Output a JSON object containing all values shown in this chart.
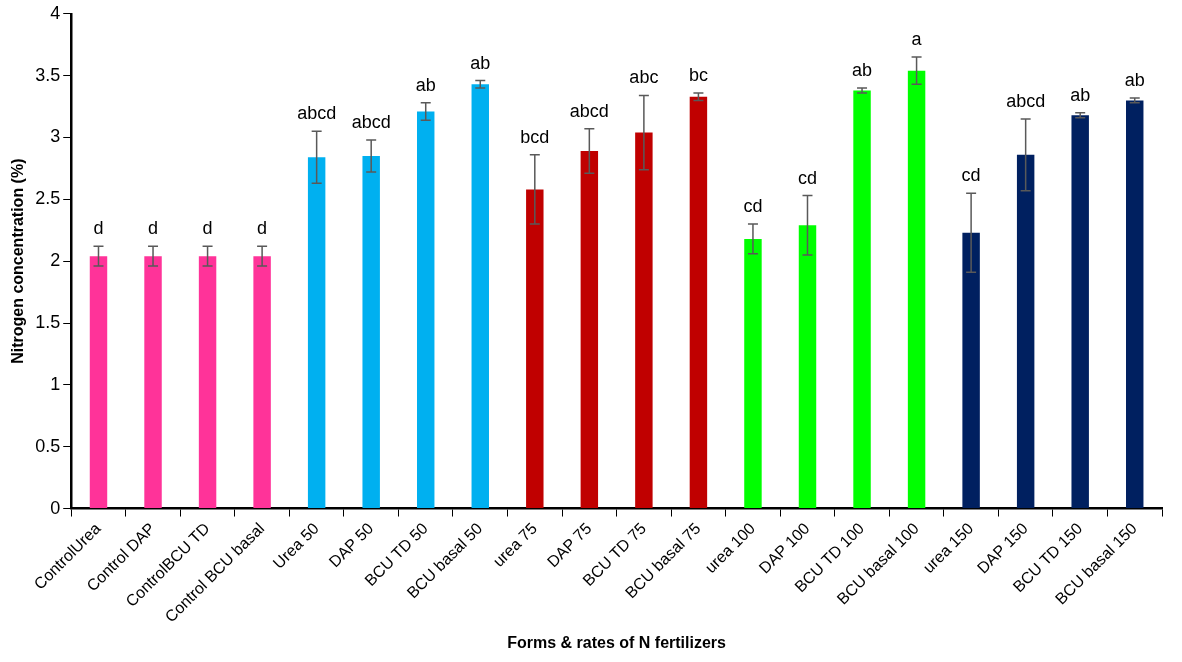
{
  "chart_data": {
    "type": "bar",
    "xlabel": "Forms & rates of N fertilizers",
    "ylabel": "Nitrogen concentration (%)",
    "categories": [
      "ControlUrea",
      "Control DAP",
      "ControlBCU TD",
      "Control BCU basal",
      "Urea 50",
      "DAP 50",
      "BCU TD 50",
      "BCU basal 50",
      "urea 75",
      "DAP 75",
      "BCU TD 75",
      "BCU basal 75",
      "urea 100",
      "DAP 100",
      "BCU TD 100",
      "BCU basal 100",
      "urea 150",
      "DAP 150",
      "BCU TD 150",
      "BCU basal 150"
    ],
    "values": [
      2.04,
      2.04,
      2.04,
      2.04,
      2.84,
      2.85,
      3.21,
      3.43,
      2.58,
      2.89,
      3.04,
      3.33,
      2.18,
      2.29,
      3.38,
      3.54,
      2.23,
      2.86,
      3.18,
      3.3
    ],
    "errors": [
      0.08,
      0.08,
      0.08,
      0.08,
      0.21,
      0.13,
      0.07,
      0.03,
      0.28,
      0.18,
      0.3,
      0.03,
      0.12,
      0.24,
      0.02,
      0.11,
      0.32,
      0.29,
      0.02,
      0.02
    ],
    "colors": [
      "#ff3399",
      "#ff3399",
      "#ff3399",
      "#ff3399",
      "#00b0f0",
      "#00b0f0",
      "#00b0f0",
      "#00b0f0",
      "#c00000",
      "#c00000",
      "#c00000",
      "#c00000",
      "#00ff00",
      "#00ff00",
      "#00ff00",
      "#00ff00",
      "#002060",
      "#002060",
      "#002060",
      "#002060"
    ],
    "ylim": [
      0,
      4
    ],
    "yticks": [
      0,
      0.5,
      1,
      1.5,
      2,
      2.5,
      3,
      3.5,
      4
    ],
    "grid": false,
    "legend": false,
    "annotations": [
      {
        "text": "d",
        "x": "ControlUrea",
        "y": 2.12
      },
      {
        "text": "d",
        "x": "Control DAP",
        "y": 2.12
      },
      {
        "text": "d",
        "x": "ControlBCU TD",
        "y": 2.12
      },
      {
        "text": "d",
        "x": "Control BCU basal",
        "y": 2.12
      },
      {
        "text": "abcd",
        "x": "Urea 50",
        "y": 3.05
      },
      {
        "text": "abcd",
        "x": "DAP 50",
        "y": 2.98
      },
      {
        "text": "ab",
        "x": "BCU TD 50",
        "y": 3.28
      },
      {
        "text": "ab",
        "x": "BCU basal 50",
        "y": 3.46
      },
      {
        "text": "bcd",
        "x": "urea 75",
        "y": 2.86
      },
      {
        "text": "abcd",
        "x": "DAP 75",
        "y": 3.07
      },
      {
        "text": "abc",
        "x": "BCU TD 75",
        "y": 3.34
      },
      {
        "text": "bc",
        "x": "BCU basal 75",
        "y": 3.36
      },
      {
        "text": "cd",
        "x": "urea 100",
        "y": 2.3
      },
      {
        "text": "cd",
        "x": "DAP 100",
        "y": 2.53
      },
      {
        "text": "ab",
        "x": "BCU TD 100",
        "y": 3.4
      },
      {
        "text": "a",
        "x": "BCU basal 100",
        "y": 3.65
      },
      {
        "text": "cd",
        "x": "urea 150",
        "y": 2.55
      },
      {
        "text": "abcd",
        "x": "DAP 150",
        "y": 3.15
      },
      {
        "text": "ab",
        "x": "BCU TD 150",
        "y": 3.2
      },
      {
        "text": "ab",
        "x": "BCU basal 150",
        "y": 3.32
      }
    ]
  }
}
